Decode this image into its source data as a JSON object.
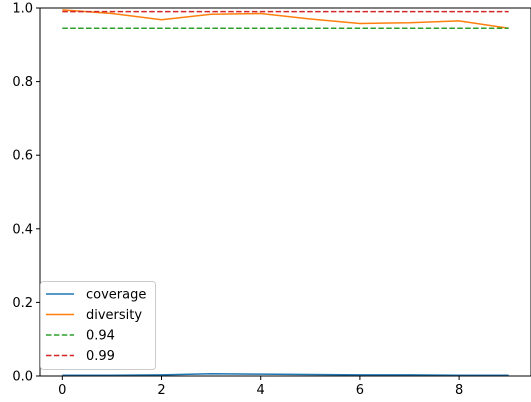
{
  "chart_data": {
    "type": "line",
    "title": "",
    "xlabel": "",
    "ylabel": "",
    "xlim": [
      -0.45,
      9.45
    ],
    "ylim": [
      0.0,
      1.0
    ],
    "grid": false,
    "legend_position": "lower-left",
    "x": [
      0,
      1,
      2,
      3,
      4,
      5,
      6,
      7,
      8,
      9
    ],
    "x_ticks": [
      "0",
      "2",
      "4",
      "6",
      "8"
    ],
    "x_tick_values": [
      0,
      2,
      4,
      6,
      8
    ],
    "y_ticks": [
      "0.0",
      "0.2",
      "0.4",
      "0.6",
      "0.8",
      "1.0"
    ],
    "y_tick_values": [
      0.0,
      0.2,
      0.4,
      0.6,
      0.8,
      1.0
    ],
    "series": [
      {
        "name": "coverage",
        "style": "solid",
        "color": "#1f77b4",
        "values": [
          0.002,
          0.002,
          0.003,
          0.006,
          0.005,
          0.004,
          0.003,
          0.003,
          0.002,
          0.002
        ]
      },
      {
        "name": "diversity",
        "style": "solid",
        "color": "#ff7f0e",
        "values": [
          0.995,
          0.985,
          0.968,
          0.983,
          0.985,
          0.97,
          0.958,
          0.96,
          0.965,
          0.945
        ]
      },
      {
        "name": "0.94",
        "style": "dashed",
        "color": "#2ca02c",
        "values": [
          0.945,
          0.945,
          0.945,
          0.945,
          0.945,
          0.945,
          0.945,
          0.945,
          0.945,
          0.945
        ]
      },
      {
        "name": "0.99",
        "style": "dashed",
        "color": "#d62728",
        "values": [
          0.99,
          0.99,
          0.99,
          0.99,
          0.99,
          0.99,
          0.99,
          0.99,
          0.99,
          0.99
        ]
      }
    ]
  }
}
